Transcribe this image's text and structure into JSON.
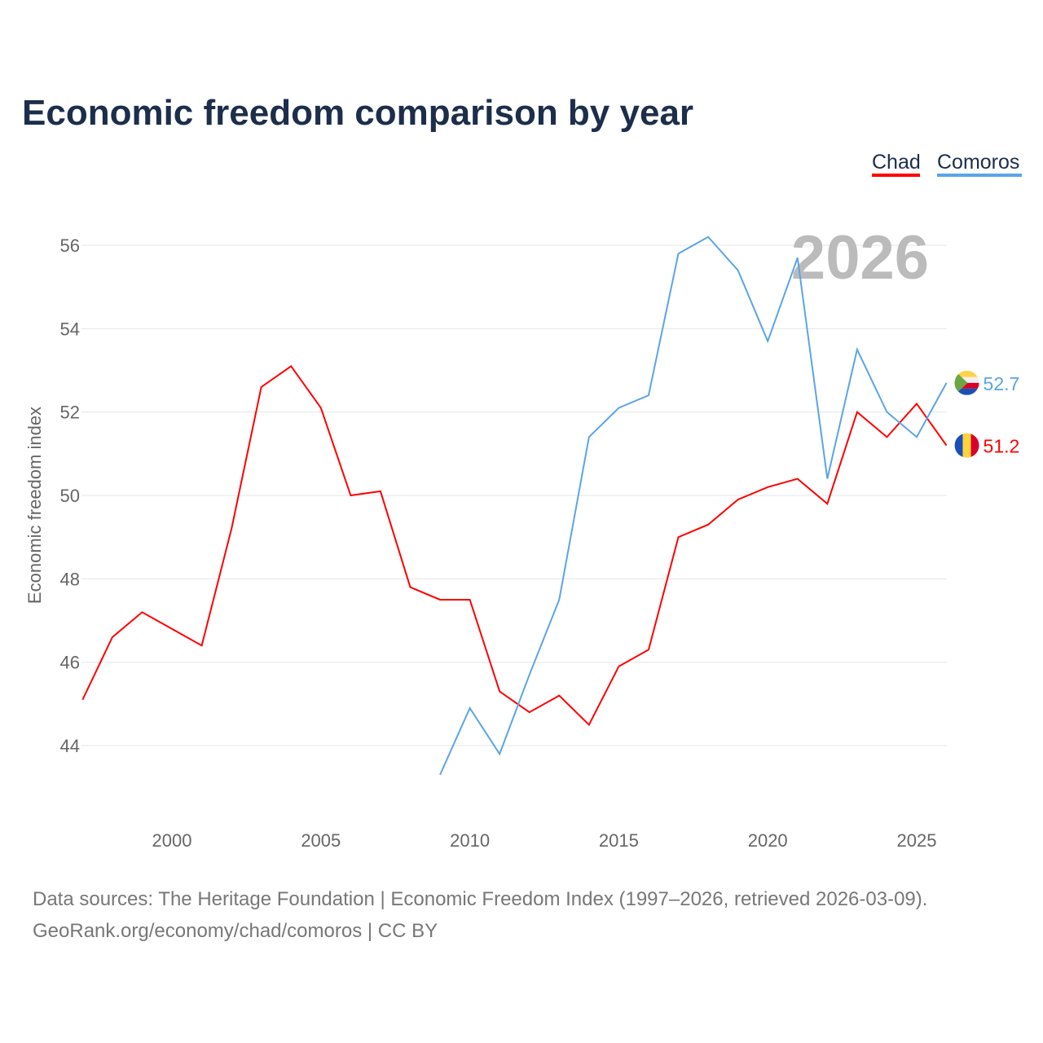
{
  "chart_data": {
    "type": "line",
    "title": "Economic freedom comparison by year",
    "ylabel": "Economic freedom index",
    "xlabel": "",
    "xlim": [
      1997,
      2026
    ],
    "ylim": [
      42.2,
      57.2
    ],
    "yticks": [
      44,
      46,
      48,
      50,
      52,
      54,
      56
    ],
    "xticks": [
      2000,
      2005,
      2010,
      2015,
      2020,
      2025
    ],
    "grid": true,
    "legend_placement": "top-right",
    "year_watermark": "2026",
    "series": [
      {
        "name": "Chad",
        "color": "#ff0000",
        "end_label": "51.2",
        "x": [
          1997,
          1998,
          1999,
          2000,
          2001,
          2002,
          2003,
          2004,
          2005,
          2006,
          2007,
          2008,
          2009,
          2010,
          2011,
          2012,
          2013,
          2014,
          2015,
          2016,
          2017,
          2018,
          2019,
          2020,
          2021,
          2022,
          2023,
          2024,
          2025,
          2026
        ],
        "values": [
          45.1,
          46.6,
          47.2,
          46.8,
          46.4,
          49.2,
          52.6,
          53.1,
          52.1,
          50.0,
          50.1,
          47.8,
          47.5,
          47.5,
          45.3,
          44.8,
          45.2,
          44.5,
          45.9,
          46.3,
          49.0,
          49.3,
          49.9,
          50.2,
          50.4,
          49.8,
          52.0,
          51.4,
          52.2,
          51.2
        ]
      },
      {
        "name": "Comoros",
        "color": "#5ba4e8",
        "end_label": "52.7",
        "x": [
          2009,
          2010,
          2011,
          2012,
          2013,
          2014,
          2015,
          2016,
          2017,
          2018,
          2019,
          2020,
          2021,
          2022,
          2023,
          2024,
          2025,
          2026
        ],
        "values": [
          43.3,
          44.9,
          43.8,
          45.7,
          47.5,
          51.4,
          52.1,
          52.4,
          55.8,
          56.2,
          55.4,
          53.7,
          55.7,
          50.4,
          53.5,
          52.0,
          51.4,
          52.7
        ]
      }
    ]
  },
  "footer": {
    "line1": "Data sources: The Heritage Foundation | Economic Freedom Index (1997–2026, retrieved 2026-03-09).",
    "line2": "GeoRank.org/economy/chad/comoros | CC BY"
  }
}
